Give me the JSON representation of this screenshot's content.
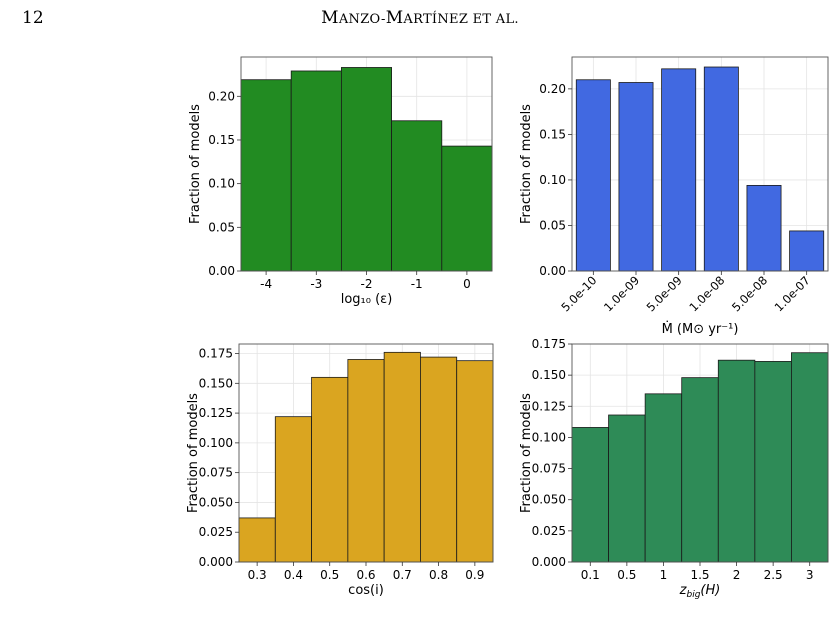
{
  "page": {
    "number": "12",
    "running_head_first": "M",
    "running_head_rest": "ANZO-",
    "running_head_first2": "M",
    "running_head_rest2": "ARTÍNEZ ET AL."
  },
  "chart_data": [
    {
      "type": "bar",
      "color": "#228b22",
      "categories": [
        "-4",
        "-3",
        "-2",
        "-1",
        "0"
      ],
      "values": [
        0.219,
        0.229,
        0.233,
        0.172,
        0.143
      ],
      "xlabel": "log₁₀ (ε)",
      "ylabel": "Fraction of models",
      "yticks": [
        "0.00",
        "0.05",
        "0.10",
        "0.15",
        "0.20"
      ],
      "ylim": [
        0,
        0.245
      ],
      "grid": true,
      "contiguous": true
    },
    {
      "type": "bar",
      "color": "#4169e1",
      "categories": [
        "5.0e-10",
        "1.0e-09",
        "5.0e-09",
        "1.0e-08",
        "5.0e-08",
        "1.0e-07"
      ],
      "values": [
        0.21,
        0.207,
        0.222,
        0.224,
        0.094,
        0.044
      ],
      "xlabel": "Ṁ (M⊙ yr⁻¹)",
      "ylabel": "Fraction of models",
      "yticks": [
        "0.00",
        "0.05",
        "0.10",
        "0.15",
        "0.20"
      ],
      "ylim": [
        0,
        0.235
      ],
      "grid": true,
      "contiguous": false,
      "rotate_ticks": true
    },
    {
      "type": "bar",
      "color": "#daa520",
      "categories": [
        "0.3",
        "0.4",
        "0.5",
        "0.6",
        "0.7",
        "0.8",
        "0.9"
      ],
      "values": [
        0.037,
        0.122,
        0.155,
        0.17,
        0.176,
        0.172,
        0.169
      ],
      "xlabel": "cos(i)",
      "ylabel": "Fraction of models",
      "yticks": [
        "0.000",
        "0.025",
        "0.050",
        "0.075",
        "0.100",
        "0.125",
        "0.150",
        "0.175"
      ],
      "ylim": [
        0,
        0.183
      ],
      "grid": true,
      "contiguous": true
    },
    {
      "type": "bar",
      "color": "#2e8b57",
      "categories": [
        "0.1",
        "0.5",
        "1",
        "1.5",
        "2",
        "2.5",
        "3"
      ],
      "values": [
        0.108,
        0.118,
        0.135,
        0.148,
        0.162,
        0.161,
        0.168
      ],
      "xlabel": "z_big(H)",
      "ylabel": "Fraction of models",
      "yticks": [
        "0.000",
        "0.025",
        "0.050",
        "0.075",
        "0.100",
        "0.125",
        "0.150",
        "0.175"
      ],
      "ylim": [
        0,
        0.175
      ],
      "grid": true,
      "contiguous": true
    }
  ]
}
